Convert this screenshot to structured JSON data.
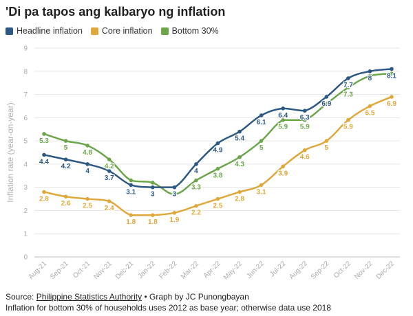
{
  "chart_data": {
    "type": "line",
    "title": "'Di pa tapos ang kalbaryo ng inflation",
    "ylabel": "Inflation rate (year-on-year)",
    "xlabel": "",
    "ylim": [
      0,
      9
    ],
    "yticks": [
      "0",
      "1",
      "2",
      "3",
      "4",
      "5",
      "6",
      "7",
      "8",
      "9"
    ],
    "grid": true,
    "legend_position": "top-left",
    "categories": [
      "Aug-21",
      "Sep-21",
      "Oct-21",
      "Nov-21",
      "Dec-21",
      "Jan-22",
      "Feb-22",
      "Mar-22",
      "Apr-22",
      "May-22",
      "Jun-22",
      "Jul-22",
      "Aug-22",
      "Sep-22",
      "Oct-22",
      "Nov-22",
      "Dec-22"
    ],
    "series": [
      {
        "name": "Headline inflation",
        "color": "#2d5883",
        "labels_below": true,
        "values": [
          4.4,
          4.2,
          4.0,
          3.7,
          3.1,
          3.0,
          3.0,
          4.0,
          4.9,
          5.4,
          6.1,
          6.4,
          6.3,
          6.9,
          7.7,
          8.0,
          8.1
        ],
        "labels": [
          "4.4",
          "4.2",
          "4",
          "3.7",
          "3.1",
          "3",
          "3",
          "4",
          "4.9",
          "5.4",
          "6.1",
          "6.4",
          "6.3",
          "6.9",
          "7.7",
          "8",
          "8.1"
        ]
      },
      {
        "name": "Core inflation",
        "color": "#e0a83a",
        "labels_below": true,
        "values": [
          2.8,
          2.6,
          2.5,
          2.4,
          1.8,
          1.8,
          1.9,
          2.2,
          2.5,
          2.8,
          3.1,
          3.9,
          4.6,
          5.0,
          5.9,
          6.5,
          6.9
        ],
        "labels": [
          "2.8",
          "2.6",
          "2.5",
          "2.4",
          "1.8",
          "1.8",
          "1.9",
          "2.2",
          "2.5",
          "2.8",
          "3.1",
          "3.9",
          "4.6",
          "5",
          "5.9",
          "6.5",
          "6.9"
        ]
      },
      {
        "name": "Bottom 30%",
        "color": "#6da64a",
        "labels_below": true,
        "values": [
          5.3,
          5.0,
          4.8,
          4.2,
          3.3,
          3.2,
          2.7,
          3.3,
          3.8,
          4.3,
          5.0,
          5.9,
          5.9,
          6.6,
          7.3,
          7.8,
          7.9
        ],
        "labels": [
          "5.3",
          "5",
          "4.8",
          "4.2",
          "",
          "",
          "",
          "3.3",
          "3.8",
          "4.3",
          "5",
          "5.9",
          "5.9",
          "",
          "7.3",
          "",
          ""
        ]
      }
    ]
  },
  "footer": {
    "source_prefix": "Source: ",
    "source_name": "Philippine Statistics Authority",
    "source_suffix": " • Graph by JC Punongbayan",
    "note": "Inflation for bottom 30% of households uses 2012 as base year; otherwise data use 2018"
  }
}
